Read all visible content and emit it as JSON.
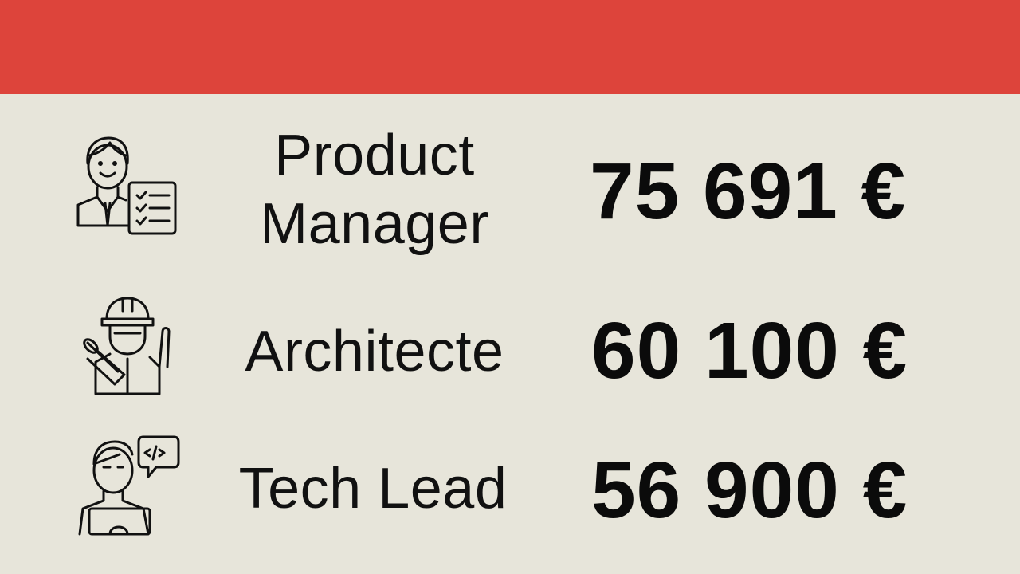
{
  "header": {
    "color": "#dd443b"
  },
  "rows": [
    {
      "icon": "manager-checklist-icon",
      "title_line1": "Product",
      "title_line2": "Manager",
      "amount": "75 691 €"
    },
    {
      "icon": "architect-helmet-icon",
      "title": "Architecte",
      "amount": "60 100 €"
    },
    {
      "icon": "developer-code-icon",
      "title": "Tech Lead",
      "amount": "56 900 €"
    }
  ]
}
